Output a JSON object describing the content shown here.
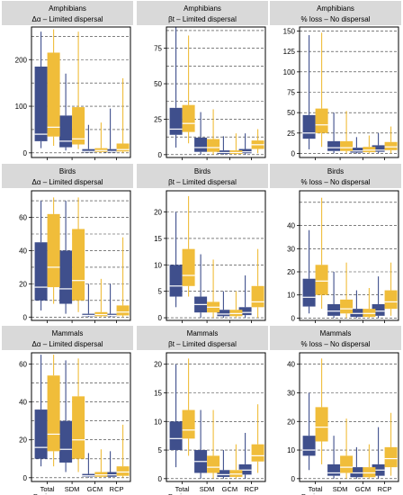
{
  "colors": {
    "blue": "#3f4f8c",
    "yellow": "#f0bd3a",
    "strip": "#d9d9d9",
    "grid": "#333333"
  },
  "categories": [
    "Total Deviance",
    "SDM",
    "GCM",
    "RCP"
  ],
  "chart_data": [
    {
      "type": "box",
      "group": "Amphibians",
      "metric": "Δα – Limited dispersal",
      "ylim": [
        -10,
        270
      ],
      "ticks": [
        0,
        100,
        200
      ],
      "gridlines": [
        0,
        50,
        100,
        150,
        200,
        250
      ],
      "show_xlabels": false,
      "series": [
        {
          "name": "",
          "color_key": "blue",
          "boxes": [
            {
              "min": 10,
              "q1": 25,
              "median": 40,
              "q3": 185,
              "max": 260
            },
            {
              "min": 5,
              "q1": 12,
              "median": 25,
              "q3": 80,
              "max": 170
            },
            {
              "min": 0,
              "q1": 1,
              "median": 3,
              "q3": 8,
              "max": 60
            },
            {
              "min": 0,
              "q1": 1,
              "median": 3,
              "q3": 8,
              "max": 95
            }
          ]
        },
        {
          "name": "",
          "color_key": "yellow",
          "boxes": [
            {
              "min": 15,
              "q1": 35,
              "median": 55,
              "q3": 215,
              "max": 265
            },
            {
              "min": 8,
              "q1": 18,
              "median": 30,
              "q3": 98,
              "max": 260
            },
            {
              "min": 0,
              "q1": 2,
              "median": 5,
              "q3": 10,
              "max": 65
            },
            {
              "min": 0,
              "q1": 3,
              "median": 7,
              "q3": 20,
              "max": 160
            }
          ]
        }
      ]
    },
    {
      "type": "box",
      "group": "Amphibians",
      "metric": "βt – Limited dispersal",
      "ylim": [
        -2,
        90
      ],
      "ticks": [
        0,
        25,
        50,
        75
      ],
      "gridlines": [
        0,
        12.5,
        25,
        37.5,
        50,
        62.5,
        75,
        87.5
      ],
      "show_xlabels": false,
      "series": [
        {
          "name": "",
          "color_key": "blue",
          "boxes": [
            {
              "min": 5,
              "q1": 14,
              "median": 18,
              "q3": 33,
              "max": 90
            },
            {
              "min": 0,
              "q1": 2,
              "median": 5,
              "q3": 12,
              "max": 30
            },
            {
              "min": 0,
              "q1": 0.5,
              "median": 1.5,
              "q3": 3,
              "max": 13
            },
            {
              "min": 0,
              "q1": 1,
              "median": 2,
              "q3": 4,
              "max": 15
            }
          ]
        },
        {
          "name": "",
          "color_key": "yellow",
          "boxes": [
            {
              "min": 8,
              "q1": 16,
              "median": 22,
              "q3": 35,
              "max": 84
            },
            {
              "min": 0,
              "q1": 2,
              "median": 5,
              "q3": 11,
              "max": 32
            },
            {
              "min": 0,
              "q1": 0.5,
              "median": 1.5,
              "q3": 3,
              "max": 15
            },
            {
              "min": 1,
              "q1": 4,
              "median": 7,
              "q3": 10,
              "max": 18
            }
          ]
        }
      ]
    },
    {
      "type": "box",
      "group": "Amphibians",
      "metric": "% loss – No dispersal",
      "ylim": [
        -5,
        155
      ],
      "ticks": [
        0,
        25,
        50,
        75,
        100,
        125,
        150
      ],
      "gridlines": [
        0,
        25,
        50,
        75,
        100,
        125,
        150
      ],
      "show_xlabels": false,
      "series": [
        {
          "name": "",
          "color_key": "blue",
          "boxes": [
            {
              "min": 5,
              "q1": 18,
              "median": 25,
              "q3": 47,
              "max": 145
            },
            {
              "min": 0,
              "q1": 3,
              "median": 7,
              "q3": 15,
              "max": 50
            },
            {
              "min": 0,
              "q1": 1,
              "median": 3,
              "q3": 7,
              "max": 20
            },
            {
              "min": 0,
              "q1": 2,
              "median": 4,
              "q3": 10,
              "max": 25
            }
          ]
        },
        {
          "name": "",
          "color_key": "yellow",
          "boxes": [
            {
              "min": 8,
              "q1": 25,
              "median": 35,
              "q3": 55,
              "max": 148
            },
            {
              "min": 0,
              "q1": 3,
              "median": 7,
              "q3": 15,
              "max": 52
            },
            {
              "min": 0,
              "q1": 1.5,
              "median": 4,
              "q3": 8,
              "max": 22
            },
            {
              "min": 0,
              "q1": 4,
              "median": 8,
              "q3": 14,
              "max": 33
            }
          ]
        }
      ]
    },
    {
      "type": "box",
      "group": "Birds",
      "metric": "Δα – Limited dispersal",
      "ylim": [
        -2,
        76
      ],
      "ticks": [
        0,
        20,
        40,
        60
      ],
      "gridlines": [
        0,
        10,
        20,
        30,
        40,
        50,
        60,
        70
      ],
      "show_xlabels": false,
      "series": [
        {
          "name": "",
          "color_key": "blue",
          "boxes": [
            {
              "min": 4,
              "q1": 10,
              "median": 18,
              "q3": 45,
              "max": 70
            },
            {
              "min": 2,
              "q1": 8,
              "median": 17,
              "q3": 40,
              "max": 70
            },
            {
              "min": 0,
              "q1": 0.5,
              "median": 1,
              "q3": 2,
              "max": 20
            },
            {
              "min": 0,
              "q1": 0.5,
              "median": 1,
              "q3": 2,
              "max": 20
            }
          ]
        },
        {
          "name": "",
          "color_key": "yellow",
          "boxes": [
            {
              "min": 8,
              "q1": 18,
              "median": 30,
              "q3": 62,
              "max": 72
            },
            {
              "min": 3,
              "q1": 10,
              "median": 22,
              "q3": 53,
              "max": 72
            },
            {
              "min": 0,
              "q1": 0.5,
              "median": 1.5,
              "q3": 3,
              "max": 23
            },
            {
              "min": 0,
              "q1": 1,
              "median": 3,
              "q3": 7,
              "max": 48
            }
          ]
        }
      ]
    },
    {
      "type": "box",
      "group": "Birds",
      "metric": "βt – Limited dispersal",
      "ylim": [
        -0.5,
        24
      ],
      "ticks": [
        0,
        5,
        10,
        15,
        20
      ],
      "gridlines": [
        0,
        5,
        10,
        15,
        20
      ],
      "show_xlabels": false,
      "series": [
        {
          "name": "",
          "color_key": "blue",
          "boxes": [
            {
              "min": 2,
              "q1": 4,
              "median": 6,
              "q3": 10,
              "max": 20
            },
            {
              "min": 0,
              "q1": 1,
              "median": 2.5,
              "q3": 4,
              "max": 12
            },
            {
              "min": 0,
              "q1": 0.3,
              "median": 0.7,
              "q3": 1.5,
              "max": 5
            },
            {
              "min": 0,
              "q1": 0.5,
              "median": 1,
              "q3": 2,
              "max": 8
            }
          ]
        },
        {
          "name": "",
          "color_key": "yellow",
          "boxes": [
            {
              "min": 4,
              "q1": 6,
              "median": 8,
              "q3": 13,
              "max": 23
            },
            {
              "min": 0,
              "q1": 1,
              "median": 2,
              "q3": 3,
              "max": 11
            },
            {
              "min": 0,
              "q1": 0.3,
              "median": 0.8,
              "q3": 1.5,
              "max": 5
            },
            {
              "min": 0,
              "q1": 2,
              "median": 3,
              "q3": 6,
              "max": 13
            }
          ]
        }
      ]
    },
    {
      "type": "box",
      "group": "Birds",
      "metric": "% loss – No dispersal",
      "ylim": [
        -1,
        55
      ],
      "ticks": [
        0,
        10,
        20,
        30,
        40
      ],
      "gridlines": [
        0,
        10,
        20,
        30,
        40,
        50
      ],
      "show_xlabels": false,
      "series": [
        {
          "name": "",
          "color_key": "blue",
          "boxes": [
            {
              "min": 2,
              "q1": 5,
              "median": 9,
              "q3": 17,
              "max": 38
            },
            {
              "min": 0,
              "q1": 1,
              "median": 3,
              "q3": 6,
              "max": 20
            },
            {
              "min": 0,
              "q1": 0.5,
              "median": 2,
              "q3": 4,
              "max": 12
            },
            {
              "min": 0,
              "q1": 1,
              "median": 3,
              "q3": 6,
              "max": 18
            }
          ]
        },
        {
          "name": "",
          "color_key": "yellow",
          "boxes": [
            {
              "min": 4,
              "q1": 10,
              "median": 16,
              "q3": 23,
              "max": 52
            },
            {
              "min": 0,
              "q1": 2,
              "median": 4,
              "q3": 8,
              "max": 24
            },
            {
              "min": 0,
              "q1": 0.5,
              "median": 2,
              "q3": 4,
              "max": 13
            },
            {
              "min": 1,
              "q1": 4,
              "median": 7,
              "q3": 12,
              "max": 24
            }
          ]
        }
      ]
    },
    {
      "type": "box",
      "group": "Mammals",
      "metric": "Δα – Limited dispersal",
      "ylim": [
        -2,
        66
      ],
      "ticks": [
        0,
        20,
        40,
        60
      ],
      "gridlines": [
        0,
        10,
        20,
        30,
        40,
        50,
        60
      ],
      "show_xlabels": true,
      "series": [
        {
          "name": "",
          "color_key": "blue",
          "boxes": [
            {
              "min": 6,
              "q1": 10,
              "median": 16,
              "q3": 36,
              "max": 65
            },
            {
              "min": 3,
              "q1": 8,
              "median": 15,
              "q3": 30,
              "max": 62
            },
            {
              "min": 0,
              "q1": 0.5,
              "median": 1,
              "q3": 2,
              "max": 13
            },
            {
              "min": 0,
              "q1": 0.5,
              "median": 1.5,
              "q3": 3,
              "max": 14
            }
          ]
        },
        {
          "name": "",
          "color_key": "yellow",
          "boxes": [
            {
              "min": 6,
              "q1": 14,
              "median": 23,
              "q3": 54,
              "max": 65
            },
            {
              "min": 3,
              "q1": 10,
              "median": 20,
              "q3": 43,
              "max": 63
            },
            {
              "min": 0,
              "q1": 0.5,
              "median": 1.5,
              "q3": 3,
              "max": 15
            },
            {
              "min": 0,
              "q1": 1,
              "median": 3,
              "q3": 6,
              "max": 28
            }
          ]
        }
      ]
    },
    {
      "type": "box",
      "group": "Mammals",
      "metric": "βt – Limited dispersal",
      "ylim": [
        -0.5,
        22
      ],
      "ticks": [
        0,
        5,
        10,
        15,
        20
      ],
      "gridlines": [
        0,
        5,
        10,
        15,
        20
      ],
      "show_xlabels": true,
      "series": [
        {
          "name": "",
          "color_key": "blue",
          "boxes": [
            {
              "min": 2,
              "q1": 5,
              "median": 7,
              "q3": 10,
              "max": 20
            },
            {
              "min": 0,
              "q1": 1,
              "median": 3,
              "q3": 5,
              "max": 12
            },
            {
              "min": 0,
              "q1": 0.3,
              "median": 0.7,
              "q3": 1.5,
              "max": 5
            },
            {
              "min": 0,
              "q1": 0.7,
              "median": 1.5,
              "q3": 2.5,
              "max": 8
            }
          ]
        },
        {
          "name": "",
          "color_key": "yellow",
          "boxes": [
            {
              "min": 4,
              "q1": 7,
              "median": 8.5,
              "q3": 12,
              "max": 21
            },
            {
              "min": 0,
              "q1": 1,
              "median": 2,
              "q3": 4,
              "max": 12
            },
            {
              "min": 0,
              "q1": 0.3,
              "median": 0.8,
              "q3": 1.5,
              "max": 6
            },
            {
              "min": 1,
              "q1": 3,
              "median": 4,
              "q3": 6,
              "max": 13
            }
          ]
        }
      ]
    },
    {
      "type": "box",
      "group": "Mammals",
      "metric": "% loss – No dispersal",
      "ylim": [
        -1,
        44
      ],
      "ticks": [
        0,
        10,
        20,
        30,
        40
      ],
      "gridlines": [
        0,
        10,
        20,
        30,
        40
      ],
      "show_xlabels": true,
      "series": [
        {
          "name": "",
          "color_key": "blue",
          "boxes": [
            {
              "min": 3,
              "q1": 8,
              "median": 10,
              "q3": 15,
              "max": 30
            },
            {
              "min": 0,
              "q1": 1,
              "median": 2,
              "q3": 5,
              "max": 15
            },
            {
              "min": 0,
              "q1": 0.5,
              "median": 2,
              "q3": 4,
              "max": 11
            },
            {
              "min": 0,
              "q1": 1,
              "median": 3,
              "q3": 5,
              "max": 18
            }
          ]
        },
        {
          "name": "",
          "color_key": "yellow",
          "boxes": [
            {
              "min": 5,
              "q1": 13,
              "median": 18,
              "q3": 25,
              "max": 42
            },
            {
              "min": 0,
              "q1": 2,
              "median": 4,
              "q3": 8,
              "max": 21
            },
            {
              "min": 0,
              "q1": 0.5,
              "median": 2,
              "q3": 4,
              "max": 12
            },
            {
              "min": 1,
              "q1": 4,
              "median": 7,
              "q3": 11,
              "max": 23
            }
          ]
        }
      ]
    }
  ]
}
